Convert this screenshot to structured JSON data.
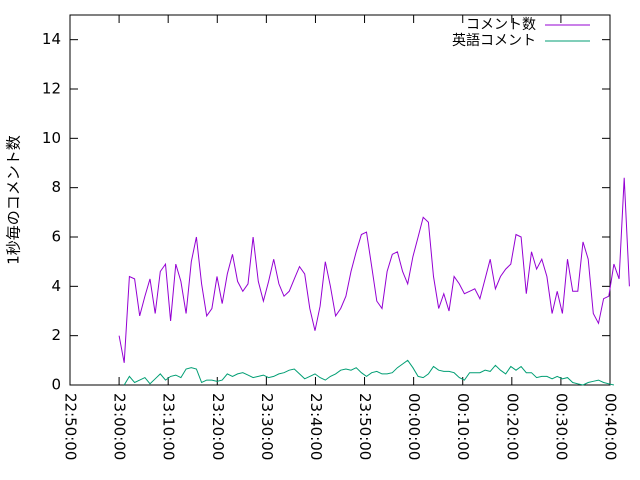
{
  "chart_data": {
    "type": "line",
    "ylabel": "1秒毎のコメント数",
    "x": [
      82800,
      82863,
      82926,
      82989,
      83052,
      83115,
      83178,
      83241,
      83304,
      83367,
      83430,
      83493,
      83556,
      83619,
      83682,
      83745,
      83808,
      83871,
      83934,
      83997,
      84060,
      84123,
      84186,
      84249,
      84312,
      84375,
      84438,
      84501,
      84564,
      84627,
      84690,
      84753,
      84816,
      84879,
      84942,
      85005,
      85068,
      85131,
      85194,
      85257,
      85320,
      85383,
      85446,
      85509,
      85572,
      85635,
      85698,
      85761,
      85824,
      85887,
      85950,
      86013,
      86076,
      86139,
      86202,
      86265,
      86328,
      86391,
      86454,
      86517,
      86580,
      86643,
      86706,
      86769,
      86832,
      86895,
      86958,
      87021,
      87084,
      87147,
      87210,
      87273,
      87336,
      87399,
      87462,
      87525,
      87588,
      87651,
      87714,
      87777,
      87840,
      87903,
      87966,
      88029,
      88092,
      88155,
      88218,
      88281,
      88344,
      88407,
      88470,
      88533,
      88596,
      88659,
      88722,
      88785,
      88848,
      88911,
      88974,
      89037
    ],
    "series": [
      {
        "name": "コメント数",
        "color": "#9400d3",
        "values": [
          2.0,
          0.9,
          4.4,
          4.3,
          2.8,
          3.6,
          4.3,
          2.9,
          4.6,
          4.9,
          2.6,
          4.9,
          4.2,
          2.9,
          5.0,
          6.0,
          4.1,
          2.8,
          3.1,
          4.4,
          3.3,
          4.5,
          5.3,
          4.2,
          3.8,
          4.1,
          6.0,
          4.2,
          3.4,
          4.2,
          5.1,
          4.1,
          3.6,
          3.8,
          4.3,
          4.8,
          4.5,
          3.1,
          2.2,
          3.2,
          5.0,
          4.0,
          2.8,
          3.1,
          3.6,
          4.6,
          5.4,
          6.1,
          6.2,
          4.8,
          3.4,
          3.1,
          4.6,
          5.3,
          5.4,
          4.6,
          4.1,
          5.2,
          6.0,
          6.8,
          6.6,
          4.4,
          3.1,
          3.7,
          3.0,
          4.4,
          4.1,
          3.7,
          3.8,
          3.9,
          3.5,
          4.3,
          5.1,
          3.9,
          4.4,
          4.7,
          4.9,
          6.1,
          6.0,
          3.7,
          5.4,
          4.7,
          5.1,
          4.4,
          2.9,
          3.8,
          2.9,
          5.1,
          3.8,
          3.8,
          5.8,
          5.1,
          2.9,
          2.5,
          3.5,
          3.6,
          4.9,
          4.3,
          8.4,
          4.0
        ]
      },
      {
        "name": "英語コメント",
        "color": "#009e73",
        "values": [
          null,
          0.0,
          0.35,
          0.1,
          0.2,
          0.3,
          0.05,
          0.25,
          0.45,
          0.2,
          0.35,
          0.4,
          0.3,
          0.65,
          0.7,
          0.65,
          0.1,
          0.2,
          0.2,
          0.15,
          0.2,
          0.45,
          0.35,
          0.45,
          0.5,
          0.4,
          0.3,
          0.35,
          0.4,
          0.3,
          0.35,
          0.45,
          0.5,
          0.6,
          0.65,
          0.45,
          0.25,
          0.35,
          0.45,
          0.3,
          0.2,
          0.35,
          0.45,
          0.6,
          0.65,
          0.6,
          0.7,
          0.5,
          0.35,
          0.5,
          0.55,
          0.45,
          0.45,
          0.5,
          0.7,
          0.85,
          1.0,
          0.7,
          0.35,
          0.3,
          0.45,
          0.75,
          0.6,
          0.55,
          0.55,
          0.5,
          0.3,
          0.2,
          0.5,
          0.5,
          0.5,
          0.6,
          0.55,
          0.8,
          0.6,
          0.45,
          0.75,
          0.6,
          0.75,
          0.5,
          0.5,
          0.3,
          0.35,
          0.35,
          0.25,
          0.35,
          0.25,
          0.3,
          0.1,
          0.05,
          0.0,
          0.1,
          0.15,
          0.2,
          0.1,
          0.05,
          0.0,
          null,
          null,
          null
        ]
      }
    ],
    "xlim": [
      82200,
      88800
    ],
    "xticks": [
      {
        "value": 82200,
        "label": "22:50:00"
      },
      {
        "value": 82800,
        "label": "23:00:00"
      },
      {
        "value": 83400,
        "label": "23:10:00"
      },
      {
        "value": 84000,
        "label": "23:20:00"
      },
      {
        "value": 84600,
        "label": "23:30:00"
      },
      {
        "value": 85200,
        "label": "23:40:00"
      },
      {
        "value": 85800,
        "label": "23:50:00"
      },
      {
        "value": 86400,
        "label": "00:00:00"
      },
      {
        "value": 87000,
        "label": "00:10:00"
      },
      {
        "value": 87600,
        "label": "00:20:00"
      },
      {
        "value": 88200,
        "label": "00:30:00"
      },
      {
        "value": 88800,
        "label": "00:40:00"
      }
    ],
    "ylim": [
      0,
      15
    ],
    "yticks": [
      0,
      2,
      4,
      6,
      8,
      10,
      12,
      14
    ],
    "legend": "top-right"
  }
}
